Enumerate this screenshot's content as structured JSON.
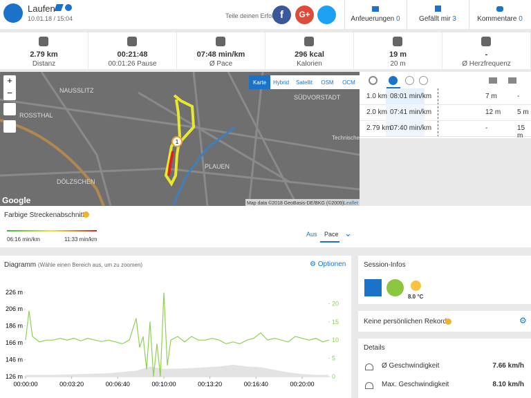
{
  "header": {
    "title": "Laufen",
    "date": "10.01.18 / 15:04",
    "share": "Teile deinen Erfolg",
    "facebook": "f",
    "google": "G+",
    "actions": [
      {
        "label": "Anfeuerungen",
        "count": 0
      },
      {
        "label": "Gefällt mir",
        "count": 3
      },
      {
        "label": "Kommentare",
        "count": 0
      }
    ]
  },
  "stats": [
    {
      "value": "2.79 km",
      "label": "Distanz"
    },
    {
      "value": "00:21:48",
      "label": "00:01:26 Pause"
    },
    {
      "value": "07:48 min/km",
      "label": "Ø Pace"
    },
    {
      "value": "296 kcal",
      "label": "Kalorien"
    },
    {
      "value": "19 m",
      "label": "20 m"
    },
    {
      "value": "-",
      "label": "Ø Herzfrequenz"
    }
  ],
  "map": {
    "layers": [
      "Karte",
      "Hybrid",
      "Satellit",
      "OSM",
      "OCM"
    ],
    "places": [
      "NAUSSLITZ",
      "SÜDVORSTADT",
      "ROSSTHAL",
      "PLAUEN",
      "DÖLZSCHEN",
      "Technische Universität Dresden"
    ],
    "marker": "1",
    "attribution": "Map data ©2018 GeoBasis-DE/BKG (©2009)",
    "leaflet": "Leaflet",
    "google": "Google"
  },
  "splits": {
    "rows": [
      [
        "1.0 km",
        "08:01 min/km",
        "7 m",
        "-"
      ],
      [
        "2.0 km",
        "07:41 min/km",
        "12 m",
        "5 m"
      ],
      [
        "2.79 km",
        "07:40 min/km",
        "-",
        "15 m"
      ]
    ]
  },
  "segments": {
    "title": "Farbige Streckenabschnitte",
    "min": "06:16 min/km",
    "max": "11:33 min/km",
    "off": "Aus",
    "mode": "Pace"
  },
  "diagram": {
    "type": "line",
    "title": "Diagramm",
    "hint": "(Wähle einen Bereich aus, um zu zoomen)",
    "options": "Optionen",
    "xlim": [
      0,
      1314
    ],
    "ylim": [
      126,
      234
    ],
    "y2lim": [
      0,
      25
    ],
    "xticks": [
      {
        "value": 0,
        "label": "00:00:00"
      },
      {
        "value": 200,
        "label": "00:03:20"
      },
      {
        "value": 400,
        "label": "00:06:40"
      },
      {
        "value": 600,
        "label": "00:10:00"
      },
      {
        "value": 800,
        "label": "00:13:20"
      },
      {
        "value": 1000,
        "label": "00:16:40"
      },
      {
        "value": 1200,
        "label": "00:20:00"
      }
    ],
    "yticks": [
      {
        "value": 126,
        "label": "126 m"
      },
      {
        "value": 146,
        "label": "146 m"
      },
      {
        "value": 166,
        "label": "166 m"
      },
      {
        "value": 186,
        "label": "186 m"
      },
      {
        "value": 206,
        "label": "206 m"
      },
      {
        "value": 226,
        "label": "226 m"
      }
    ],
    "y2ticks": [
      0,
      5,
      10,
      15,
      20
    ],
    "series": [
      {
        "type": "area",
        "color": "#e3e3e3",
        "x": [
          0,
          120,
          240,
          360,
          480,
          540,
          600,
          720,
          840,
          900,
          960,
          1020,
          1080,
          1140,
          1200,
          1260,
          1314
        ],
        "values": [
          128,
          128,
          129,
          130,
          133,
          138,
          135,
          136,
          138,
          140,
          138,
          137,
          134,
          131,
          129,
          128,
          128
        ]
      },
      {
        "type": "line",
        "axis": "y2",
        "color": "#8fd14f",
        "x": [
          0,
          15,
          30,
          60,
          90,
          120,
          150,
          180,
          210,
          240,
          270,
          300,
          330,
          360,
          390,
          420,
          450,
          480,
          495,
          510,
          525,
          540,
          555,
          570,
          585,
          600,
          615,
          630,
          660,
          690,
          720,
          750,
          780,
          810,
          840,
          870,
          900,
          930,
          960,
          990,
          1020,
          1050,
          1080,
          1110,
          1140,
          1170,
          1200,
          1230,
          1260,
          1290,
          1314
        ],
        "values": [
          10,
          18,
          11,
          9.5,
          10,
          10,
          10.5,
          10,
          10.5,
          9.8,
          10.5,
          10,
          9.6,
          10,
          9.5,
          9,
          10,
          16,
          8,
          11,
          2,
          15,
          0,
          9,
          0,
          23,
          3,
          10,
          11,
          9.5,
          11,
          10,
          10,
          10.5,
          10,
          9,
          9.5,
          9,
          10,
          10.5,
          12,
          10,
          10.5,
          10,
          9.5,
          11,
          10.5,
          10,
          10.5,
          9.5,
          10
        ]
      }
    ]
  },
  "session": {
    "title": "Session-Infos",
    "temperature": "8.0 °C"
  },
  "records": {
    "title": "Keine persönlichen Rekorde"
  },
  "details": {
    "title": "Details",
    "rows": [
      {
        "label": "Ø Geschwindigkeit",
        "value": "7.66 km/h"
      },
      {
        "label": "Max. Geschwindigkeit",
        "value": "8.10 km/h"
      }
    ]
  }
}
